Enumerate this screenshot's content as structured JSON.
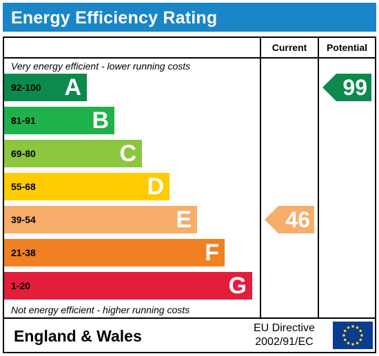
{
  "title": "Energy Efficiency Rating",
  "columns": {
    "current": "Current",
    "potential": "Potential"
  },
  "notes": {
    "top": "Very energy efficient - lower running costs",
    "bottom": "Not energy efficient - higher running costs"
  },
  "footer": {
    "country": "England & Wales",
    "directive_line1": "EU Directive",
    "directive_line2": "2002/91/EC"
  },
  "chart_data": {
    "type": "table",
    "title": "Energy Efficiency Rating",
    "bands": [
      {
        "letter": "A",
        "range": "92-100",
        "color": "#0c8a4e"
      },
      {
        "letter": "B",
        "range": "81-91",
        "color": "#1fb14c"
      },
      {
        "letter": "C",
        "range": "69-80",
        "color": "#8dc63f"
      },
      {
        "letter": "D",
        "range": "55-68",
        "color": "#ffcc00"
      },
      {
        "letter": "E",
        "range": "39-54",
        "color": "#f7ae6a"
      },
      {
        "letter": "F",
        "range": "21-38",
        "color": "#f08022"
      },
      {
        "letter": "G",
        "range": "1-20",
        "color": "#e31d3c"
      }
    ],
    "current": {
      "value": 46,
      "band": "E",
      "color": "#f7ae6a"
    },
    "potential": {
      "value": 99,
      "band": "A",
      "color": "#0c8a4e"
    }
  }
}
